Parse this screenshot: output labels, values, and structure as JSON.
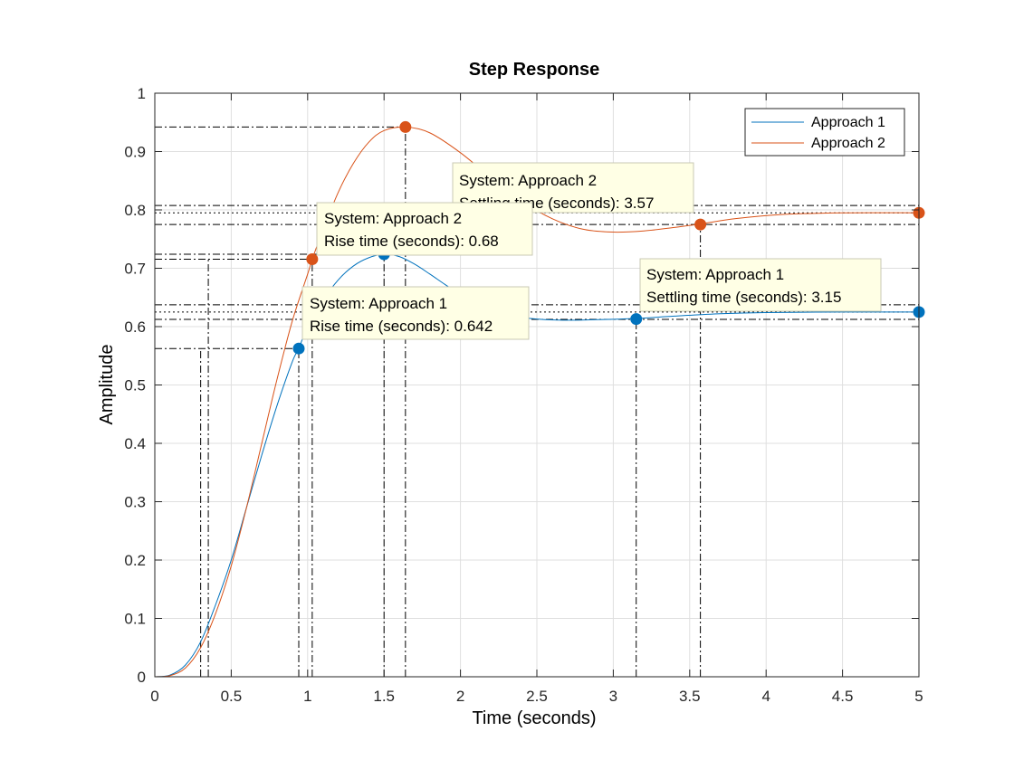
{
  "chart_data": {
    "type": "line",
    "title": "Step Response",
    "xlabel": "Time (seconds)",
    "ylabel": "Amplitude",
    "xlim": [
      0,
      5
    ],
    "ylim": [
      0,
      1
    ],
    "xticks": [
      0,
      0.5,
      1,
      1.5,
      2,
      2.5,
      3,
      3.5,
      4,
      4.5,
      5
    ],
    "yticks": [
      0,
      0.1,
      0.2,
      0.3,
      0.4,
      0.5,
      0.6,
      0.7,
      0.8,
      0.9,
      1
    ],
    "xtick_labels": [
      "0",
      "0.5",
      "1",
      "1.5",
      "2",
      "2.5",
      "3",
      "3.5",
      "4",
      "4.5",
      "5"
    ],
    "ytick_labels": [
      "0",
      "0.1",
      "0.2",
      "0.3",
      "0.4",
      "0.5",
      "0.6",
      "0.7",
      "0.8",
      "0.9",
      "1"
    ],
    "grid": true,
    "legend_position": "top-right",
    "series": [
      {
        "name": "Approach 1",
        "color": "#0072BD",
        "final_value": 0.625,
        "peak": {
          "x": 1.5,
          "y": 0.724
        },
        "rise_time": 0.642,
        "rise_start": {
          "x": 0.3,
          "y": 0.0625
        },
        "rise_end": {
          "x": 0.942,
          "y": 0.5625
        },
        "settling_time": 3.15,
        "settling_value": 0.613,
        "settling_band": [
          0.6125,
          0.6375
        ],
        "points": [
          [
            0,
            0
          ],
          [
            0.1,
            0.003
          ],
          [
            0.2,
            0.02
          ],
          [
            0.3,
            0.06
          ],
          [
            0.4,
            0.125
          ],
          [
            0.5,
            0.2
          ],
          [
            0.6,
            0.29
          ],
          [
            0.7,
            0.38
          ],
          [
            0.8,
            0.465
          ],
          [
            0.9,
            0.54
          ],
          [
            0.942,
            0.5625
          ],
          [
            1.0,
            0.6
          ],
          [
            1.1,
            0.645
          ],
          [
            1.2,
            0.68
          ],
          [
            1.3,
            0.704
          ],
          [
            1.4,
            0.718
          ],
          [
            1.5,
            0.724
          ],
          [
            1.6,
            0.72
          ],
          [
            1.7,
            0.707
          ],
          [
            1.8,
            0.69
          ],
          [
            1.9,
            0.672
          ],
          [
            2.0,
            0.655
          ],
          [
            2.1,
            0.64
          ],
          [
            2.2,
            0.628
          ],
          [
            2.3,
            0.62
          ],
          [
            2.5,
            0.613
          ],
          [
            2.7,
            0.611
          ],
          [
            2.9,
            0.612
          ],
          [
            3.15,
            0.614
          ],
          [
            3.4,
            0.618
          ],
          [
            3.7,
            0.622
          ],
          [
            4.0,
            0.624
          ],
          [
            4.5,
            0.625
          ],
          [
            5.0,
            0.625
          ]
        ]
      },
      {
        "name": "Approach 2",
        "color": "#D95319",
        "final_value": 0.795,
        "peak": {
          "x": 1.64,
          "y": 0.942
        },
        "rise_time": 0.68,
        "rise_start": {
          "x": 0.35,
          "y": 0.0795
        },
        "rise_end": {
          "x": 1.03,
          "y": 0.7155
        },
        "settling_time": 3.57,
        "settling_value": 0.775,
        "settling_band": [
          0.775,
          0.8075
        ],
        "points": [
          [
            0,
            0
          ],
          [
            0.1,
            0.002
          ],
          [
            0.2,
            0.015
          ],
          [
            0.3,
            0.05
          ],
          [
            0.4,
            0.11
          ],
          [
            0.5,
            0.19
          ],
          [
            0.6,
            0.29
          ],
          [
            0.7,
            0.4
          ],
          [
            0.8,
            0.51
          ],
          [
            0.9,
            0.61
          ],
          [
            1.0,
            0.69
          ],
          [
            1.03,
            0.7155
          ],
          [
            1.1,
            0.765
          ],
          [
            1.2,
            0.83
          ],
          [
            1.3,
            0.88
          ],
          [
            1.4,
            0.916
          ],
          [
            1.5,
            0.936
          ],
          [
            1.64,
            0.942
          ],
          [
            1.8,
            0.932
          ],
          [
            2.0,
            0.898
          ],
          [
            2.2,
            0.855
          ],
          [
            2.4,
            0.815
          ],
          [
            2.6,
            0.785
          ],
          [
            2.8,
            0.767
          ],
          [
            3.0,
            0.762
          ],
          [
            3.2,
            0.764
          ],
          [
            3.4,
            0.77
          ],
          [
            3.57,
            0.776
          ],
          [
            3.8,
            0.785
          ],
          [
            4.1,
            0.792
          ],
          [
            4.5,
            0.795
          ],
          [
            5.0,
            0.795
          ]
        ]
      }
    ],
    "datatips": [
      {
        "series": "Approach 2",
        "line1": "System: Approach 2",
        "line2": "Settling time (seconds): 3.57"
      },
      {
        "series": "Approach 2",
        "line1": "System: Approach 2",
        "line2": "Rise time (seconds): 0.68"
      },
      {
        "series": "Approach 1",
        "line1": "System: Approach 1",
        "line2": "Settling time (seconds): 3.15"
      },
      {
        "series": "Approach 1",
        "line1": "System: Approach 1",
        "line2": "Rise time (seconds): 0.642"
      }
    ]
  }
}
